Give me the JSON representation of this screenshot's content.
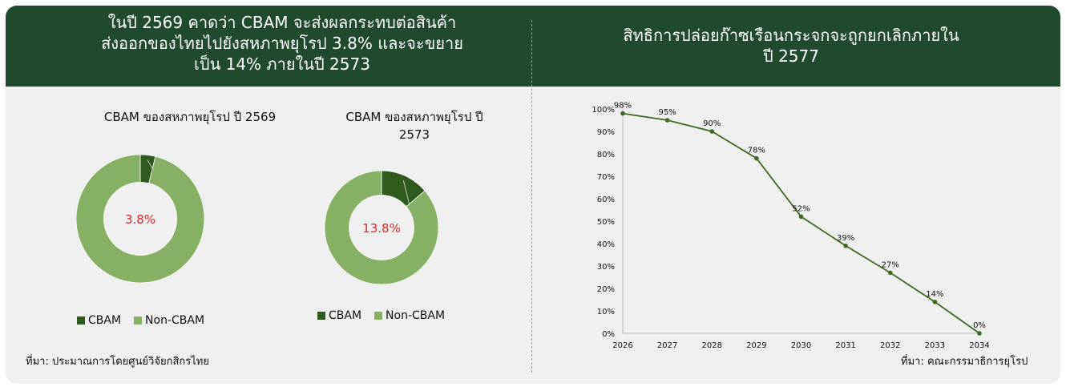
{
  "header": {
    "left_title_lines": [
      "ในปี 2569 คาดว่า CBAM จะส่งผลกระทบต่อสินค้า",
      "ส่งออกของไทยไปยังสหภาพยุโรป 3.8% และจะขยาย",
      "เป็น 14% ภายในปี 2573"
    ],
    "right_title_lines": [
      "สิทธิการปล่อยก๊าซเรือนกระจกจะถูกยกเลิกภายใน",
      "ปี 2577"
    ]
  },
  "colors": {
    "header_bg": "#1f4a2b",
    "cbam": "#2e5a1e",
    "non_cbam": "#86b064",
    "center_label": "#e0262b",
    "line": "#3e6b1f"
  },
  "chart_data": [
    {
      "type": "pie",
      "subtype": "donut",
      "title_lines": [
        "CBAM ของสหภาพยุโรป ปี 2569"
      ],
      "categories": [
        "CBAM",
        "Non-CBAM"
      ],
      "values": [
        3.8,
        96.2
      ],
      "center_label": "3.8%",
      "legend": "bottom"
    },
    {
      "type": "pie",
      "subtype": "donut",
      "title_lines": [
        "CBAM ของสหภาพยุโรป ปี",
        "2573"
      ],
      "categories": [
        "CBAM",
        "Non-CBAM"
      ],
      "values": [
        13.8,
        86.2
      ],
      "center_label": "13.8%",
      "legend": "bottom"
    },
    {
      "type": "line",
      "title": "",
      "x": [
        "2026",
        "2027",
        "2028",
        "2029",
        "2030",
        "2031",
        "2032",
        "2033",
        "2034"
      ],
      "series": [
        {
          "values": [
            98,
            95,
            90,
            78,
            52,
            39,
            27,
            14,
            0
          ],
          "labels": [
            "98%",
            "95%",
            "90%",
            "78%",
            "52%",
            "39%",
            "27%",
            "14%",
            "0%"
          ]
        }
      ],
      "yticks": [
        "0%",
        "10%",
        "20%",
        "30%",
        "40%",
        "50%",
        "60%",
        "70%",
        "80%",
        "90%",
        "100%"
      ],
      "ylim": [
        0,
        100
      ],
      "grid": false
    }
  ],
  "sources": {
    "left": "ที่มา: ประมาณการโดยศูนย์วิจัยกสิกรไทย",
    "right": "ที่มา: คณะกรรมาธิการยุโรป"
  }
}
